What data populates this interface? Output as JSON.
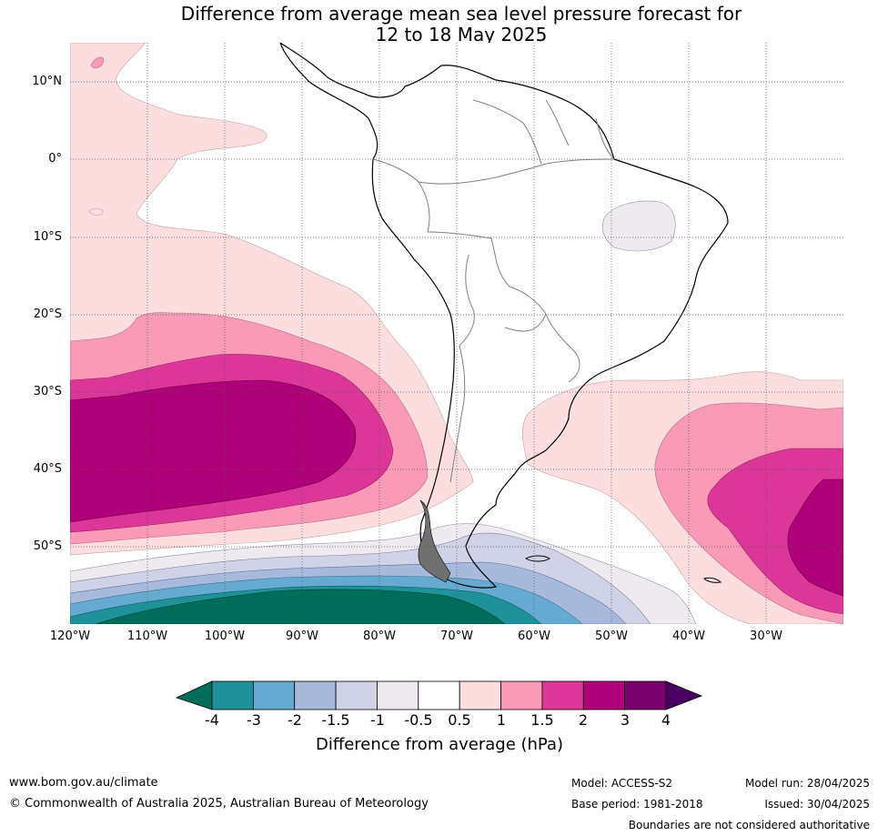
{
  "title": {
    "line1": "Difference from average mean sea level pressure forecast for",
    "line2": "12 to 18 May 2025"
  },
  "map": {
    "lat_labels": [
      "10°N",
      "0°",
      "10°S",
      "20°S",
      "30°S",
      "40°S",
      "50°S"
    ],
    "lon_labels": [
      "120°W",
      "110°W",
      "100°W",
      "90°W",
      "80°W",
      "70°W",
      "60°W",
      "50°W",
      "40°W",
      "30°W"
    ],
    "extent": {
      "lon": [
        -120,
        -20
      ],
      "lat": [
        -60,
        15
      ]
    },
    "gridlines": true
  },
  "colorbar": {
    "title": "Difference from average (hPa)",
    "tick_labels": [
      "-4",
      "-3",
      "-2",
      "-1.5",
      "-1",
      "-0.5",
      "0.5",
      "1",
      "1.5",
      "2",
      "3",
      "4"
    ],
    "colors": [
      "#1e9298",
      "#66aad2",
      "#a8badb",
      "#d0d2e6",
      "#eeeaf0",
      "#ffffff",
      "#fddede",
      "#f99ab8",
      "#dc3698",
      "#b00079",
      "#7a0070"
    ],
    "under_color": "#006d5a",
    "over_color": "#4a0060"
  },
  "footer": {
    "website": "www.bom.gov.au/climate",
    "copyright": "© Commonwealth of Australia 2025, Australian Bureau of Meteorology",
    "model": "Model: ACCESS-S2",
    "base_period": "Base period: 1981-2018",
    "model_run": "Model run: 28/04/2025",
    "issued": "Issued: 30/04/2025",
    "disclaimer": "Boundaries are not considered authoritative"
  }
}
